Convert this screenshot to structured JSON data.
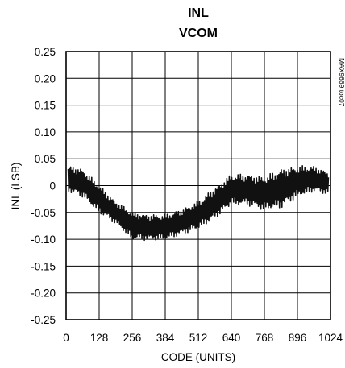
{
  "chart_data": {
    "type": "line",
    "title": "INL",
    "subtitle": "VCOM",
    "xlabel": "CODE (UNITS)",
    "ylabel": "INL (LSB)",
    "xlim": [
      0,
      1024
    ],
    "ylim": [
      -0.25,
      0.25
    ],
    "grid": true,
    "x_ticks": [
      0,
      128,
      256,
      384,
      512,
      640,
      768,
      896,
      1024
    ],
    "x_tick_labels": [
      "0",
      "128",
      "256",
      "384",
      "512",
      "640",
      "768",
      "896",
      "1024"
    ],
    "y_ticks": [
      0.25,
      0.2,
      0.15,
      0.1,
      0.05,
      0,
      -0.05,
      -0.1,
      -0.15,
      -0.2,
      -0.25
    ],
    "y_tick_labels": [
      "0.25",
      "0.20",
      "0.15",
      "0.10",
      "0.05",
      "0",
      "-0.05",
      "-0.10",
      "-0.15",
      "-0.20",
      "-0.25"
    ],
    "side_label": "MAX9669 toc07",
    "series": [
      {
        "x": [
          8,
          64,
          128,
          192,
          256,
          320,
          384,
          448,
          512,
          576,
          640,
          704,
          768,
          832,
          896,
          960,
          1016
        ],
        "upper": [
          0.036,
          0.03,
          0.0,
          -0.03,
          -0.05,
          -0.055,
          -0.055,
          -0.045,
          -0.03,
          -0.005,
          0.02,
          0.02,
          0.015,
          0.03,
          0.035,
          0.035,
          0.025
        ],
        "lower": [
          -0.01,
          -0.02,
          -0.05,
          -0.07,
          -0.1,
          -0.1,
          -0.1,
          -0.09,
          -0.08,
          -0.06,
          -0.035,
          -0.035,
          -0.045,
          -0.04,
          -0.02,
          -0.01,
          -0.015
        ]
      }
    ]
  }
}
